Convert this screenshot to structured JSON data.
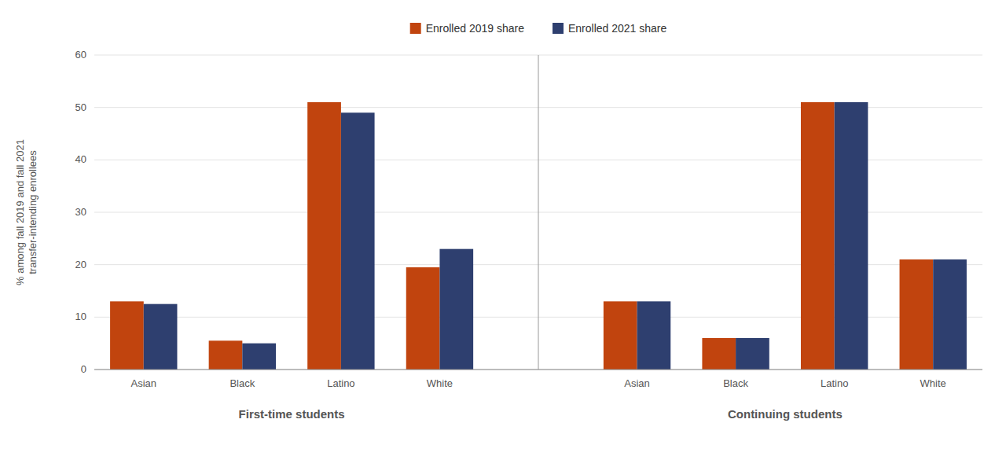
{
  "chart_data": {
    "type": "bar",
    "categories": [
      "Asian",
      "Black",
      "Latino",
      "White",
      "Asian",
      "Black",
      "Latino",
      "White"
    ],
    "group_labels": [
      "First-time students",
      "Continuing students"
    ],
    "series": [
      {
        "name": "Enrolled 2019 share",
        "color": "#C1440E",
        "values": [
          13,
          5.5,
          51,
          19.5,
          13,
          6,
          51,
          21
        ]
      },
      {
        "name": "Enrolled 2021 share",
        "color": "#2E3F6F",
        "values": [
          12.5,
          5,
          49,
          23,
          13,
          6,
          51,
          21
        ]
      }
    ],
    "y_label": "% among fall 2019 and fall 2021\ntransfer-intending enrollees",
    "ylim": [
      0,
      60
    ],
    "yticks": [
      0,
      10,
      20,
      30,
      40,
      50,
      60
    ],
    "grid": true,
    "legend": "top"
  }
}
